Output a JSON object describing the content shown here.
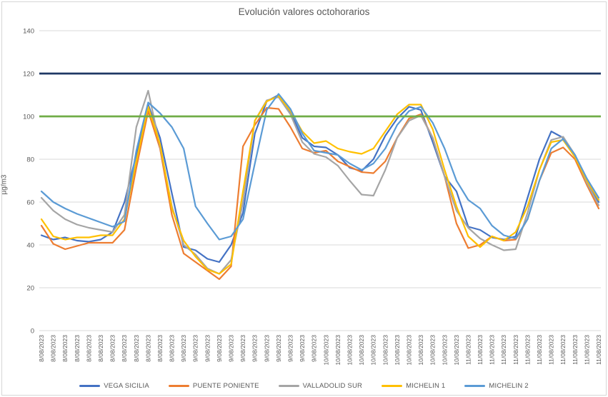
{
  "chart_data": {
    "type": "line",
    "title": "Evolución valores octohorarios",
    "ylabel": "µg/m3",
    "ylim": [
      0,
      140
    ],
    "ytick_step": 20,
    "yticks": [
      0,
      20,
      40,
      60,
      80,
      100,
      120,
      140
    ],
    "grid": true,
    "legend_position": "bottom",
    "categories": [
      "8/08/2023",
      "8/08/2023",
      "8/08/2023",
      "8/08/2023",
      "8/08/2023",
      "8/08/2023",
      "8/08/2023",
      "8/08/2023",
      "8/08/2023",
      "8/08/2023",
      "8/08/2023",
      "8/08/2023",
      "9/08/2023",
      "9/08/2023",
      "9/08/2023",
      "9/08/2023",
      "9/08/2023",
      "9/08/2023",
      "9/08/2023",
      "9/08/2023",
      "9/08/2023",
      "9/08/2023",
      "9/08/2023",
      "9/08/2023",
      "10/08/2023",
      "10/08/2023",
      "10/08/2023",
      "10/08/2023",
      "10/08/2023",
      "10/08/2023",
      "10/08/2023",
      "10/08/2023",
      "10/08/2023",
      "10/08/2023",
      "10/08/2023",
      "10/08/2023",
      "11/08/2023",
      "11/08/2023",
      "11/08/2023",
      "11/08/2023",
      "11/08/2023",
      "11/08/2023",
      "11/08/2023",
      "11/08/2023",
      "11/08/2023",
      "11/08/2023",
      "11/08/2023",
      "11/08/2023"
    ],
    "series": [
      {
        "name": "VEGA SICILIA",
        "color": "#4472C4",
        "values": [
          44.5,
          42.5,
          43.5,
          42,
          41.5,
          42.5,
          46,
          60,
          82,
          105.5,
          90,
          64,
          39,
          37.5,
          33.5,
          32,
          40,
          55,
          92,
          107,
          110,
          102,
          90,
          86,
          85.5,
          82,
          76,
          74.5,
          80,
          91,
          99,
          104.5,
          103,
          88,
          72,
          65,
          48.5,
          47,
          43.5,
          42.5,
          44,
          62,
          80,
          93,
          90,
          82,
          70,
          60
        ]
      },
      {
        "name": "PUENTE PONIENTE",
        "color": "#ED7D31",
        "values": [
          49,
          40.5,
          38,
          39.5,
          41,
          41,
          41,
          47,
          76,
          102.5,
          85,
          54,
          36,
          32,
          28,
          24,
          30,
          86,
          96,
          104,
          103.5,
          95,
          85,
          83,
          84,
          79,
          76.5,
          74,
          73.5,
          79,
          90,
          99,
          101,
          90,
          72,
          50,
          38.5,
          40,
          44,
          42,
          42.5,
          52,
          70,
          83,
          85.5,
          80,
          68,
          57
        ]
      },
      {
        "name": "VALLADOLID SUR",
        "color": "#A5A5A5",
        "values": [
          62,
          56,
          52,
          49.5,
          48,
          47,
          46,
          54,
          95,
          112,
          86,
          58,
          40,
          35.5,
          29,
          26.5,
          33,
          60,
          98,
          107.5,
          109,
          101,
          88,
          82.5,
          81,
          77,
          70,
          63.5,
          63,
          75,
          90,
          98,
          100.5,
          90,
          72,
          56,
          48,
          43,
          40,
          37.5,
          38,
          55,
          75,
          89,
          90.5,
          82,
          69,
          58.5
        ]
      },
      {
        "name": "MICHELIN 1",
        "color": "#FFC000",
        "values": [
          52,
          44,
          42.5,
          43.5,
          43.5,
          44.5,
          44.5,
          52,
          79,
          104.5,
          87,
          57,
          42,
          34.5,
          28.5,
          26.5,
          31,
          65,
          98,
          107,
          109.5,
          102.5,
          93,
          87.5,
          88.5,
          85,
          83.5,
          82.5,
          85,
          93,
          101,
          105.5,
          105.5,
          94,
          75,
          58,
          44,
          39,
          44,
          42,
          46,
          58,
          75,
          88,
          89,
          81,
          70,
          61
        ]
      },
      {
        "name": "MICHELIN 2",
        "color": "#5B9BD5",
        "values": [
          65,
          60,
          57,
          54.5,
          52.5,
          50.5,
          48.5,
          51,
          84,
          106.5,
          101.5,
          95,
          85,
          58,
          50,
          42.5,
          44,
          52,
          78,
          103,
          110.5,
          103.5,
          92,
          84,
          83,
          82,
          78,
          75,
          78,
          85,
          96,
          102.5,
          104.5,
          97,
          85,
          70,
          61,
          57,
          49,
          44.5,
          43,
          52,
          70,
          85,
          89.5,
          82,
          71,
          62
        ]
      }
    ],
    "reference_lines": [
      {
        "value": 120,
        "color": "#1F3864"
      },
      {
        "value": 100,
        "color": "#70AD47"
      }
    ],
    "colors": {
      "gridline": "#D9D9D9",
      "axis_text": "#595959",
      "title_text": "#595959",
      "background": "#FFFFFF"
    }
  }
}
